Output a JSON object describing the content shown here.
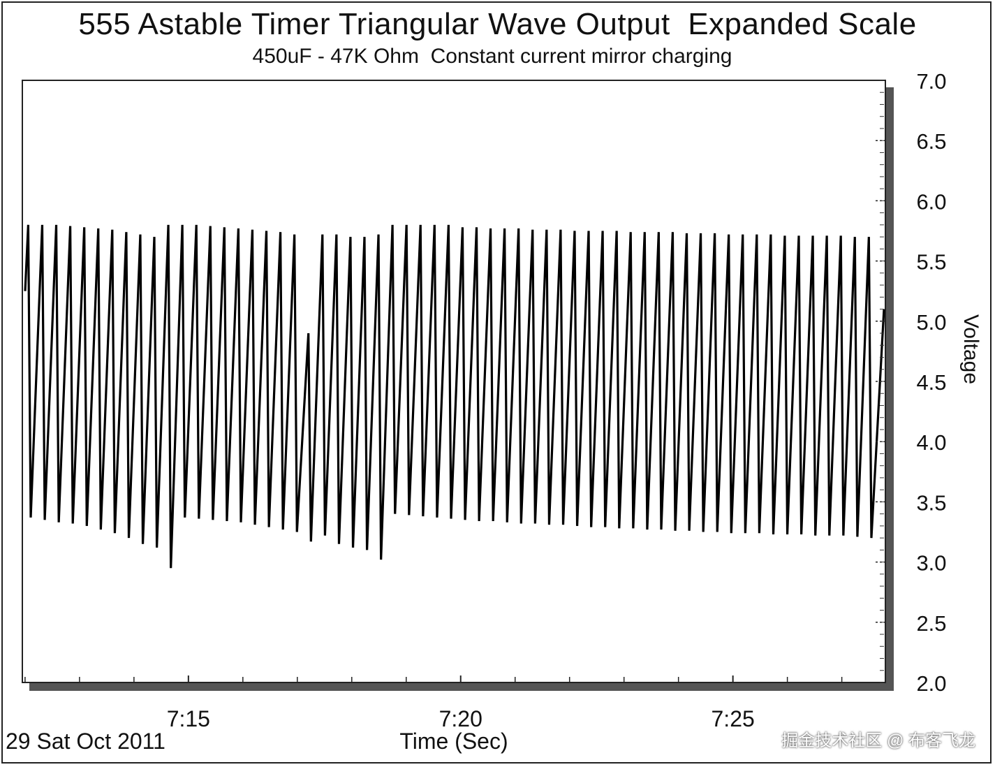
{
  "chart_data": {
    "type": "line",
    "title": "555 Astable Timer Triangular Wave Output  Expanded Scale",
    "subtitle": "450uF - 47K Ohm  Constant current mirror charging",
    "xlabel": "Time (Sec)",
    "ylabel": "Voltage",
    "date_label": "29 Sat Oct 2011",
    "ylim": [
      2.0,
      7.0
    ],
    "y_ticks": [
      "7.0",
      "6.5",
      "6.0",
      "5.5",
      "5.0",
      "4.5",
      "4.0",
      "3.5",
      "3.0",
      "2.5",
      "2.0"
    ],
    "y_tick_values": [
      7.0,
      6.5,
      6.0,
      5.5,
      5.0,
      4.5,
      4.0,
      3.5,
      3.0,
      2.5,
      2.0
    ],
    "x_ticks": [
      "7:15",
      "7:20",
      "7:25"
    ],
    "x_tick_minutes": [
      15,
      20,
      25
    ],
    "xlim_minutes": [
      11.95,
      27.8
    ],
    "grid": true,
    "series": [
      {
        "name": "Voltage",
        "color": "#000000",
        "peaks_v": [
          5.8,
          5.8,
          5.8,
          5.79,
          5.78,
          5.77,
          5.76,
          5.74,
          5.72,
          5.7,
          5.8,
          5.8,
          5.8,
          5.79,
          5.78,
          5.77,
          5.76,
          5.75,
          5.74,
          5.72,
          4.9,
          5.72,
          5.72,
          5.7,
          5.7,
          5.72,
          5.8,
          5.8,
          5.8,
          5.8,
          5.8,
          5.78,
          5.78,
          5.77,
          5.77,
          5.77,
          5.76,
          5.76,
          5.76,
          5.75,
          5.75,
          5.75,
          5.75,
          5.74,
          5.74,
          5.74,
          5.74,
          5.73,
          5.73,
          5.73,
          5.72,
          5.72,
          5.72,
          5.72,
          5.71,
          5.71,
          5.71,
          5.71,
          5.71,
          5.7,
          5.7
        ],
        "troughs_v": [
          3.37,
          3.35,
          3.33,
          3.32,
          3.3,
          3.27,
          3.24,
          3.2,
          3.15,
          3.12,
          2.95,
          3.37,
          3.36,
          3.35,
          3.34,
          3.33,
          3.31,
          3.29,
          3.27,
          3.25,
          3.17,
          3.22,
          3.15,
          3.12,
          3.1,
          3.02,
          3.4,
          3.39,
          3.38,
          3.37,
          3.36,
          3.35,
          3.34,
          3.34,
          3.33,
          3.32,
          3.32,
          3.31,
          3.31,
          3.3,
          3.29,
          3.29,
          3.28,
          3.28,
          3.27,
          3.27,
          3.26,
          3.26,
          3.25,
          3.25,
          3.24,
          3.24,
          3.24,
          3.23,
          3.23,
          3.23,
          3.22,
          3.22,
          3.22,
          3.21,
          3.2
        ],
        "start_v": 5.25,
        "end_v": 5.1
      }
    ]
  },
  "watermark": "掘金技术社区 @ 布客飞龙"
}
